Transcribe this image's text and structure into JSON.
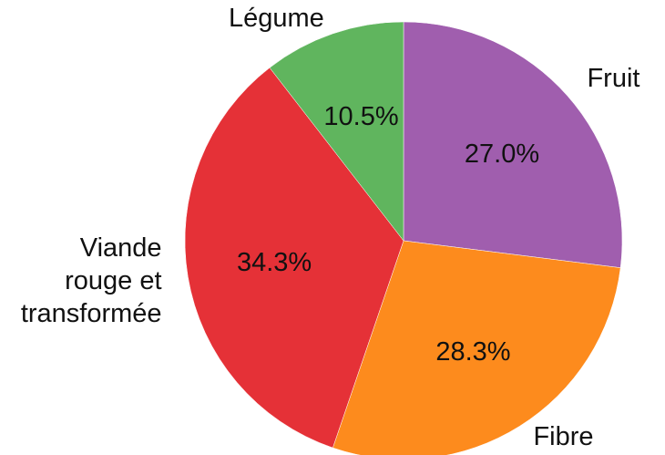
{
  "chart_data": {
    "type": "pie",
    "categories": [
      "Fruit",
      "Fibre",
      "Viande\nrouge et\ntransformée",
      "Légume"
    ],
    "values": [
      27.0,
      28.3,
      34.3,
      10.5
    ],
    "value_labels": [
      "27.0%",
      "28.3%",
      "34.3%",
      "10.5%"
    ],
    "colors": [
      "#a05eae",
      "#fd8b1d",
      "#e53137",
      "#60b55e"
    ],
    "start_angle": "top",
    "direction": "clockwise"
  }
}
